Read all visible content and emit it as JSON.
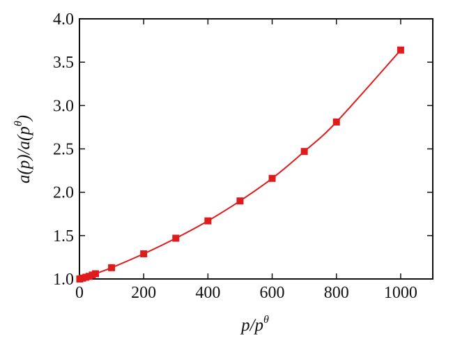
{
  "chart_data": {
    "type": "line",
    "title": "",
    "xlabel": {
      "base": "p/p",
      "sup": "θ"
    },
    "ylabel": {
      "base": "a(p)/a(p",
      "sup": "θ",
      "tail": ")"
    },
    "xlim": [
      0,
      1100
    ],
    "ylim": [
      1.0,
      4.0
    ],
    "xticks": [
      0,
      200,
      400,
      600,
      800,
      1000
    ],
    "yticks": [
      1.0,
      1.5,
      2.0,
      2.5,
      3.0,
      3.5,
      4.0
    ],
    "xtick_labels": [
      "0",
      "200",
      "400",
      "600",
      "800",
      "1000"
    ],
    "ytick_labels": [
      "1.0",
      "1.5",
      "2.0",
      "2.5",
      "3.0",
      "3.5",
      "4.0"
    ],
    "grid": false,
    "color": "#e01b1b",
    "series": [
      {
        "marker": "square",
        "x": [
          1,
          10,
          20,
          30,
          40,
          50,
          100,
          200,
          300,
          400,
          500,
          600,
          700,
          800,
          1000
        ],
        "y": [
          1.0,
          1.01,
          1.02,
          1.03,
          1.045,
          1.06,
          1.13,
          1.29,
          1.47,
          1.67,
          1.9,
          2.16,
          2.47,
          2.81,
          3.64
        ]
      }
    ]
  }
}
